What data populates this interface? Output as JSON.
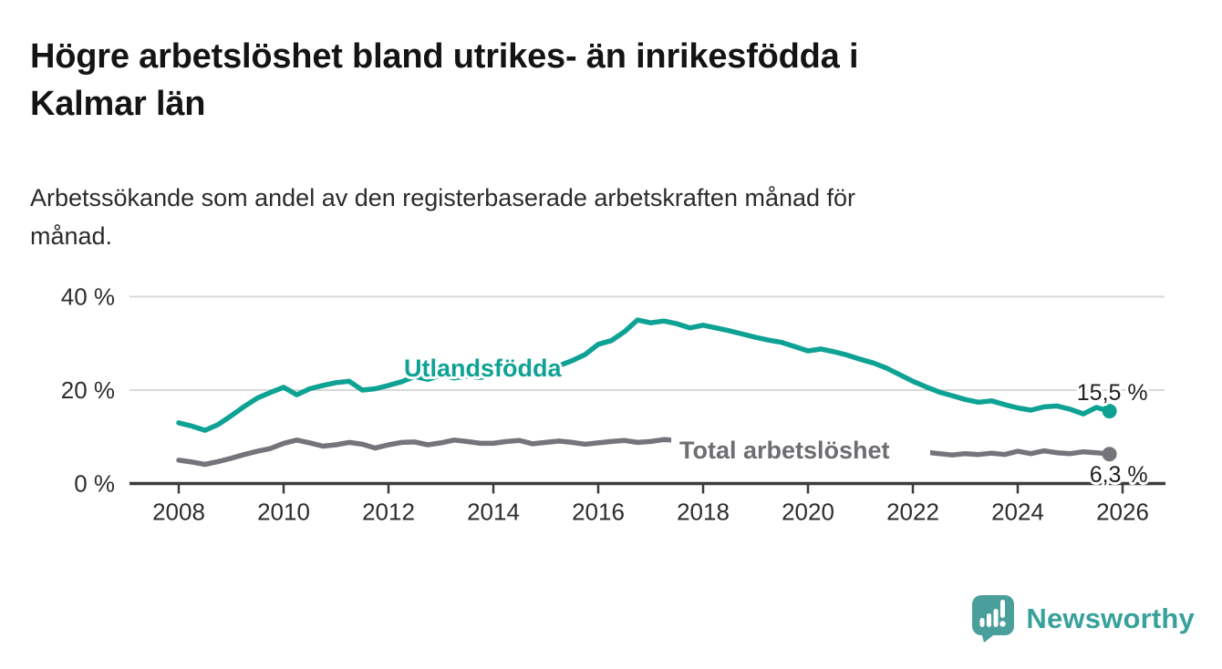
{
  "header": {
    "title": "Högre arbetslöshet bland utrikes- än inrikesfödda i\nKalmar län",
    "subtitle": "Arbetssökande som andel av den registerbaserade arbetskraften månad för\nmånad."
  },
  "branding": {
    "logo_text": "Newsworthy",
    "logo_icon": "bar-chart-speech-bubble-icon",
    "logo_bubble_color": "#4a9e9b",
    "logo_text_color": "#38a19b"
  },
  "colors": {
    "accent_teal": "#0ea295",
    "series_gray": "#74747a",
    "gridline": "#d9d9d9",
    "axis": "#3c3c3c",
    "tick_text": "#2d2d2d",
    "background": "#ffffff"
  },
  "chart_data": {
    "type": "line",
    "title": "Högre arbetslöshet bland utrikes- än inrikesfödda i Kalmar län",
    "subtitle": "Arbetssökande som andel av den registerbaserade arbetskraften månad för månad.",
    "xlabel": "",
    "ylabel": "",
    "grid": "horizontal",
    "legend_position": "inline-labels",
    "x_start_year": 2008,
    "points_per_year": 4,
    "xlim": [
      2007.2,
      2026.8
    ],
    "ylim": [
      0,
      43
    ],
    "x_tick_labels": [
      "2008",
      "2010",
      "2012",
      "2014",
      "2016",
      "2018",
      "2020",
      "2022",
      "2024",
      "2026"
    ],
    "y_ticks": [
      {
        "label": "0 %",
        "value": 0
      },
      {
        "label": "20 %",
        "value": 20
      },
      {
        "label": "40 %",
        "value": 40
      }
    ],
    "series": [
      {
        "name": "Utlandsfödda",
        "color": "#0ea295",
        "end_label": "15,5 %",
        "end_value": 15.5,
        "values": [
          13.0,
          12.3,
          11.4,
          12.6,
          14.5,
          16.5,
          18.3,
          19.5,
          20.6,
          19.0,
          20.3,
          21.0,
          21.6,
          21.9,
          20.0,
          20.3,
          21.0,
          21.8,
          22.9,
          22.3,
          23.2,
          22.6,
          23.0,
          22.7,
          23.2,
          23.6,
          24.0,
          23.6,
          24.4,
          25.2,
          26.3,
          27.6,
          29.8,
          30.6,
          32.5,
          35.0,
          34.4,
          34.8,
          34.2,
          33.3,
          33.9,
          33.3,
          32.7,
          32.0,
          31.3,
          30.7,
          30.2,
          29.3,
          28.4,
          28.8,
          28.2,
          27.5,
          26.6,
          25.8,
          24.7,
          23.3,
          21.9,
          20.7,
          19.6,
          18.8,
          18.0,
          17.4,
          17.7,
          16.9,
          16.2,
          15.7,
          16.4,
          16.6,
          15.9,
          14.9,
          16.3,
          15.5
        ]
      },
      {
        "name": "Total arbetslöshet",
        "color": "#74747a",
        "end_label": "6,3 %",
        "end_value": 6.3,
        "values": [
          5.0,
          4.6,
          4.1,
          4.7,
          5.4,
          6.2,
          6.9,
          7.5,
          8.6,
          9.3,
          8.7,
          8.0,
          8.3,
          8.8,
          8.4,
          7.6,
          8.3,
          8.8,
          8.9,
          8.3,
          8.7,
          9.3,
          9.0,
          8.6,
          8.6,
          9.0,
          9.2,
          8.5,
          8.8,
          9.1,
          8.8,
          8.4,
          8.7,
          9.0,
          9.2,
          8.8,
          9.0,
          9.4,
          9.2,
          8.9,
          8.8,
          8.6,
          8.4,
          8.2,
          8.1,
          8.0,
          8.2,
          8.4,
          8.8,
          9.6,
          9.4,
          9.0,
          8.6,
          8.2,
          7.8,
          7.3,
          7.0,
          6.7,
          6.4,
          6.1,
          6.4,
          6.2,
          6.5,
          6.2,
          6.9,
          6.4,
          7.0,
          6.6,
          6.4,
          6.8,
          6.6,
          6.3
        ]
      }
    ]
  }
}
